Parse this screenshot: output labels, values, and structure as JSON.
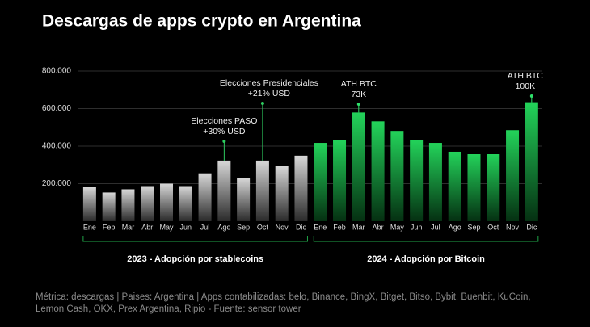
{
  "chart_data": {
    "type": "bar",
    "title": "Descargas de apps crypto en Argentina",
    "categories": [
      "Ene",
      "Feb",
      "Mar",
      "Abr",
      "May",
      "Jun",
      "Jul",
      "Ago",
      "Sep",
      "Oct",
      "Nov",
      "Dic"
    ],
    "series": [
      {
        "name": "2023 - Adopción por stablecoins",
        "color": "#bdbdbd",
        "values": [
          183000,
          153000,
          170000,
          187000,
          200000,
          187000,
          255000,
          323000,
          230000,
          323000,
          294000,
          349000
        ]
      },
      {
        "name": "2024 - Adopción por Bitcoin",
        "color": "#1fc24f",
        "values": [
          417000,
          434000,
          579000,
          532000,
          481000,
          434000,
          417000,
          370000,
          357000,
          357000,
          485000,
          634000
        ]
      }
    ],
    "ylim": [
      0,
      800000
    ],
    "yticks": [
      {
        "value": 200000,
        "label": "200.000"
      },
      {
        "value": 400000,
        "label": "400.000"
      },
      {
        "value": 600000,
        "label": "600.000"
      },
      {
        "value": 800000,
        "label": "800.000"
      }
    ],
    "grid": true,
    "annotations": [
      [
        "Elecciones PASO",
        "+30% USD"
      ],
      [
        "Elecciones Presidenciales",
        "+21% USD"
      ],
      [
        "ATH BTC",
        "73K"
      ],
      [
        "ATH BTC",
        "100K"
      ]
    ],
    "note": [
      "Métrica: descargas | Paises: Argentina | Apps contabilizadas: belo, Binance, BingX, Bitget, Bitso, Bybit, Buenbit, KuCoin,",
      "Lemon Cash, OKX, Prex Argentina, Ripio - Fuente: sensor tower"
    ]
  }
}
